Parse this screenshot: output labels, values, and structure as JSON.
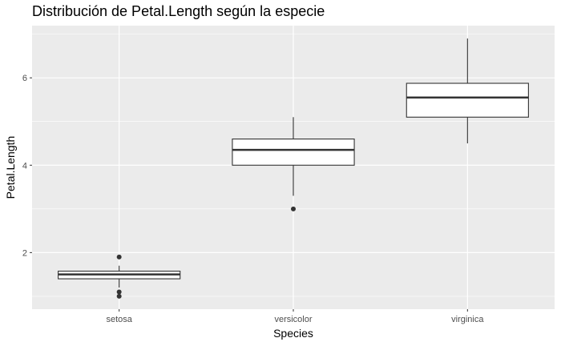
{
  "chart_data": {
    "type": "boxplot",
    "title": "Distribución de Petal.Length según la especie",
    "xlabel": "Species",
    "ylabel": "Petal.Length",
    "categories": [
      "setosa",
      "versicolor",
      "virginica"
    ],
    "boxes": [
      {
        "category": "setosa",
        "lower_whisker": 1.2,
        "q1": 1.4,
        "median": 1.5,
        "q3": 1.575,
        "upper_whisker": 1.7,
        "outliers": [
          1.0,
          1.1,
          1.9
        ]
      },
      {
        "category": "versicolor",
        "lower_whisker": 3.3,
        "q1": 4.0,
        "median": 4.35,
        "q3": 4.6,
        "upper_whisker": 5.1,
        "outliers": [
          3.0
        ]
      },
      {
        "category": "virginica",
        "lower_whisker": 4.5,
        "q1": 5.1,
        "median": 5.55,
        "q3": 5.875,
        "upper_whisker": 6.9,
        "outliers": []
      }
    ],
    "ylim": [
      0.705,
      7.195
    ],
    "yticks": [
      2,
      4,
      6
    ],
    "ytick_labels": [
      "2",
      "4",
      "6"
    ],
    "y_minor_ticks": [
      1,
      3,
      5,
      7
    ],
    "grid": true,
    "legend": "none",
    "colors": {
      "panel_background": "#EBEBEB",
      "grid_line": "#FFFFFF",
      "box_fill": "#FFFFFF",
      "box_stroke": "#333333",
      "point": "#333333"
    }
  }
}
